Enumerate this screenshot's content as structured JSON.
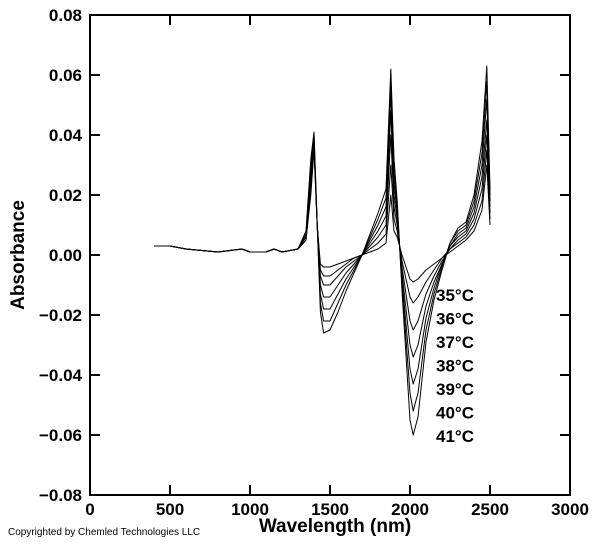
{
  "chart_data": {
    "type": "line",
    "title": "",
    "xlabel": "Wavelength (nm)",
    "ylabel": "Absorbance",
    "xlim": [
      0,
      3000
    ],
    "ylim": [
      -0.08,
      0.08
    ],
    "xticks": [
      "0",
      "500",
      "1000",
      "1500",
      "2000",
      "2500",
      "3000"
    ],
    "yticks": [
      "0.08",
      "0.06",
      "0.04",
      "0.02",
      "0.00",
      "−0.02",
      "−0.04",
      "−0.06",
      "−0.08"
    ],
    "grid": false,
    "legend_position": "lower-right, inside plot",
    "x": [
      400,
      500,
      600,
      800,
      950,
      1000,
      1100,
      1150,
      1200,
      1300,
      1350,
      1380,
      1400,
      1420,
      1440,
      1460,
      1500,
      1550,
      1600,
      1650,
      1700,
      1750,
      1800,
      1850,
      1880,
      1900,
      1920,
      1950,
      2000,
      2020,
      2050,
      2100,
      2150,
      2200,
      2250,
      2300,
      2350,
      2400,
      2450,
      2480,
      2500
    ],
    "series": [
      {
        "name": "35°C",
        "values": [
          0.003,
          0.003,
          0.002,
          0.001,
          0.002,
          0.001,
          0.001,
          0.002,
          0.001,
          0.002,
          0.005,
          0.02,
          0.035,
          0.01,
          -0.003,
          -0.004,
          -0.004,
          -0.003,
          -0.002,
          -0.001,
          0.0,
          0.001,
          0.002,
          0.004,
          0.02,
          0.008,
          0.006,
          0.0,
          -0.008,
          -0.009,
          -0.008,
          -0.005,
          -0.003,
          -0.001,
          0.001,
          0.003,
          0.005,
          0.008,
          0.015,
          0.03,
          0.01
        ]
      },
      {
        "name": "36°C",
        "values": [
          0.003,
          0.003,
          0.002,
          0.001,
          0.002,
          0.001,
          0.001,
          0.002,
          0.001,
          0.002,
          0.005,
          0.022,
          0.036,
          0.01,
          -0.005,
          -0.007,
          -0.007,
          -0.005,
          -0.003,
          -0.001,
          0.0,
          0.002,
          0.004,
          0.007,
          0.03,
          0.012,
          0.008,
          -0.002,
          -0.014,
          -0.016,
          -0.014,
          -0.009,
          -0.005,
          -0.001,
          0.002,
          0.004,
          0.006,
          0.01,
          0.018,
          0.035,
          0.012
        ]
      },
      {
        "name": "37°C",
        "values": [
          0.003,
          0.003,
          0.002,
          0.001,
          0.002,
          0.001,
          0.001,
          0.002,
          0.001,
          0.002,
          0.006,
          0.024,
          0.037,
          0.01,
          -0.007,
          -0.01,
          -0.01,
          -0.007,
          -0.004,
          -0.002,
          0.0,
          0.003,
          0.006,
          0.01,
          0.04,
          0.016,
          0.01,
          -0.004,
          -0.022,
          -0.025,
          -0.022,
          -0.013,
          -0.007,
          -0.002,
          0.002,
          0.005,
          0.007,
          0.012,
          0.022,
          0.04,
          0.014
        ]
      },
      {
        "name": "38°C",
        "values": [
          0.003,
          0.003,
          0.002,
          0.001,
          0.002,
          0.001,
          0.001,
          0.002,
          0.001,
          0.002,
          0.006,
          0.026,
          0.038,
          0.01,
          -0.01,
          -0.014,
          -0.014,
          -0.01,
          -0.006,
          -0.003,
          0.0,
          0.004,
          0.008,
          0.013,
          0.048,
          0.02,
          0.012,
          -0.006,
          -0.03,
          -0.034,
          -0.03,
          -0.017,
          -0.009,
          -0.003,
          0.003,
          0.006,
          0.008,
          0.014,
          0.026,
          0.045,
          0.016
        ]
      },
      {
        "name": "39°C",
        "values": [
          0.003,
          0.003,
          0.002,
          0.001,
          0.002,
          0.001,
          0.001,
          0.002,
          0.001,
          0.002,
          0.007,
          0.028,
          0.039,
          0.01,
          -0.013,
          -0.018,
          -0.018,
          -0.013,
          -0.008,
          -0.004,
          0.0,
          0.005,
          0.01,
          0.016,
          0.054,
          0.024,
          0.014,
          -0.008,
          -0.038,
          -0.043,
          -0.038,
          -0.021,
          -0.011,
          -0.003,
          0.003,
          0.007,
          0.009,
          0.016,
          0.03,
          0.052,
          0.018
        ]
      },
      {
        "name": "40°C",
        "values": [
          0.003,
          0.003,
          0.002,
          0.001,
          0.002,
          0.001,
          0.001,
          0.002,
          0.001,
          0.002,
          0.007,
          0.03,
          0.04,
          0.01,
          -0.016,
          -0.022,
          -0.022,
          -0.016,
          -0.01,
          -0.005,
          0.0,
          0.006,
          0.012,
          0.019,
          0.058,
          0.028,
          0.016,
          -0.01,
          -0.046,
          -0.052,
          -0.046,
          -0.025,
          -0.013,
          -0.004,
          0.004,
          0.008,
          0.01,
          0.018,
          0.034,
          0.058,
          0.02
        ]
      },
      {
        "name": "41°C",
        "values": [
          0.003,
          0.003,
          0.002,
          0.001,
          0.002,
          0.001,
          0.001,
          0.002,
          0.001,
          0.002,
          0.008,
          0.032,
          0.041,
          0.01,
          -0.019,
          -0.026,
          -0.025,
          -0.019,
          -0.012,
          -0.006,
          0.0,
          0.007,
          0.014,
          0.022,
          0.062,
          0.032,
          0.018,
          -0.012,
          -0.055,
          -0.06,
          -0.054,
          -0.029,
          -0.015,
          -0.005,
          0.004,
          0.009,
          0.011,
          0.02,
          0.038,
          0.063,
          0.022
        ]
      }
    ],
    "series_color": "#000000"
  },
  "footer": {
    "copyright": "Copyrighted by Chemled Technologies LLC"
  }
}
